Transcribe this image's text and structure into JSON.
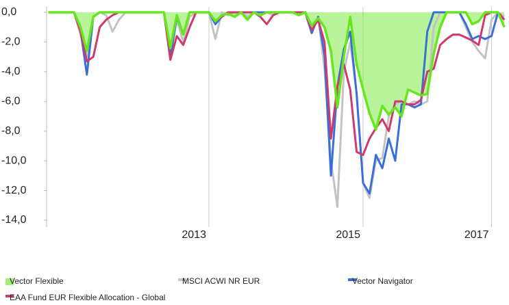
{
  "chart_data": {
    "type": "line",
    "categories": [
      null,
      null,
      null,
      null,
      null,
      null,
      null,
      null,
      null,
      null,
      null,
      null,
      null,
      null,
      null,
      null,
      null,
      null,
      null,
      null,
      null,
      null,
      null,
      null,
      null,
      "2013",
      null,
      null,
      null,
      null,
      null,
      null,
      null,
      null,
      null,
      null,
      null,
      null,
      null,
      null,
      null,
      null,
      null,
      null,
      null,
      null,
      null,
      null,
      null,
      "2015",
      null,
      null,
      null,
      null,
      null,
      null,
      null,
      null,
      null,
      null,
      null,
      null,
      null,
      null,
      null,
      null,
      null,
      null,
      null,
      "2017",
      null,
      null
    ],
    "ylim": [
      -14,
      0
    ],
    "yticks": [
      {
        "value": 0,
        "label": "0,0"
      },
      {
        "value": -2,
        "label": "-2,0"
      },
      {
        "value": -4,
        "label": "-4,0"
      },
      {
        "value": -6,
        "label": "-6,0"
      },
      {
        "value": -8,
        "label": "-8,0"
      },
      {
        "value": -10,
        "label": "-10,0"
      },
      {
        "value": -12,
        "label": "-12,0"
      },
      {
        "value": -14,
        "label": "-14,0"
      }
    ],
    "series": [
      {
        "name": "Vector Flexible",
        "color": "#66e61e",
        "area": true,
        "values": [
          0,
          0,
          0,
          0,
          0,
          -1.0,
          -2.6,
          -0.3,
          0,
          0,
          0,
          0,
          0,
          0,
          0,
          0,
          0,
          0,
          0,
          -2.4,
          -0.2,
          -1.5,
          0,
          0,
          0,
          0,
          -0.6,
          -0.2,
          -0.1,
          -0.3,
          0,
          -0.5,
          0,
          -0.2,
          0,
          0,
          0,
          0,
          0,
          -0.2,
          0,
          -0.9,
          -0.4,
          -1.0,
          -2.6,
          -6.4,
          -3.0,
          -0.3,
          -3.5,
          -5.2,
          -6.8,
          -7.9,
          -6.3,
          -6.9,
          -6.4,
          -7.0,
          -5.2,
          -5.4,
          -5.6,
          -5.5,
          -2.8,
          -1.0,
          0,
          0,
          0,
          0,
          -0.8,
          -0.6,
          0,
          0,
          0,
          -1.0
        ]
      },
      {
        "name": "MSCI ACWI NR EUR",
        "color": "#c3c3c3",
        "values": [
          0,
          0,
          0,
          0,
          0,
          -1.5,
          -3.0,
          -0.3,
          0,
          -0.2,
          -1.3,
          -0.5,
          0,
          0,
          0,
          0,
          0,
          0,
          0,
          -3.0,
          -0.5,
          -2.0,
          -0.3,
          0,
          0,
          0,
          -1.8,
          0,
          -0.2,
          0,
          0,
          -0.3,
          0,
          0,
          0,
          -0.2,
          0,
          0,
          0,
          0,
          0,
          -1.3,
          -0.3,
          -3.8,
          -10.0,
          -13.1,
          -4.0,
          -2.0,
          -5.5,
          -11.5,
          -12.5,
          -10.0,
          -9.8,
          -7.0,
          -6.2,
          -6.0,
          -6.2,
          -6.0,
          -6.2,
          -6.0,
          -1.0,
          0,
          0,
          0,
          0,
          -1.0,
          -2.0,
          -2.6,
          -3.1,
          -0.5,
          0,
          -0.3
        ]
      },
      {
        "name": "Vector Navigator",
        "color": "#3a6fd8",
        "values": [
          0,
          0,
          0,
          0,
          0,
          -1.2,
          -4.2,
          -0.3,
          0,
          0,
          0,
          0,
          0,
          0,
          0,
          0,
          0,
          0,
          0,
          -3.0,
          -0.3,
          -1.5,
          0,
          0,
          0,
          0,
          -0.8,
          -0.3,
          0,
          0,
          0,
          0,
          0,
          0,
          0,
          0,
          0,
          0,
          0,
          0,
          0,
          -1.4,
          -0.3,
          -2.9,
          -11.0,
          -5.0,
          -2.5,
          -1.3,
          -5.5,
          -11.5,
          -12.2,
          -9.6,
          -10.5,
          -8.5,
          -10.0,
          -6.2,
          -6.2,
          -6.4,
          -6.2,
          -1.3,
          0,
          0,
          0,
          0,
          0,
          -0.8,
          -1.8,
          -1.6,
          -1.8,
          -1.6,
          0,
          -1.0
        ]
      },
      {
        "name": "EAA Fund EUR Flexible Allocation - Global",
        "color": "#cc3a6e",
        "values": [
          0,
          0,
          0,
          0,
          0,
          -1.3,
          -3.3,
          -3.0,
          -1.0,
          -0.5,
          -0.2,
          0,
          0,
          0,
          0,
          0,
          0,
          0,
          0,
          -3.2,
          -1.6,
          -2.2,
          -1.0,
          0,
          0,
          0,
          -0.6,
          -0.3,
          0,
          0,
          0,
          0,
          0,
          -0.3,
          -0.8,
          -0.2,
          0,
          0,
          0,
          0,
          0,
          -1.2,
          -0.5,
          -2.0,
          -8.5,
          -5.0,
          -3.5,
          -5.2,
          -9.4,
          -9.6,
          -8.5,
          -7.8,
          -7.2,
          -8.0,
          -6.0,
          -6.0,
          -6.2,
          -6.2,
          -5.9,
          -4.0,
          -3.8,
          -2.2,
          -1.8,
          -1.5,
          -1.5,
          -1.7,
          -1.9,
          -2.2,
          -0.2,
          0,
          0,
          -0.5
        ]
      }
    ]
  }
}
